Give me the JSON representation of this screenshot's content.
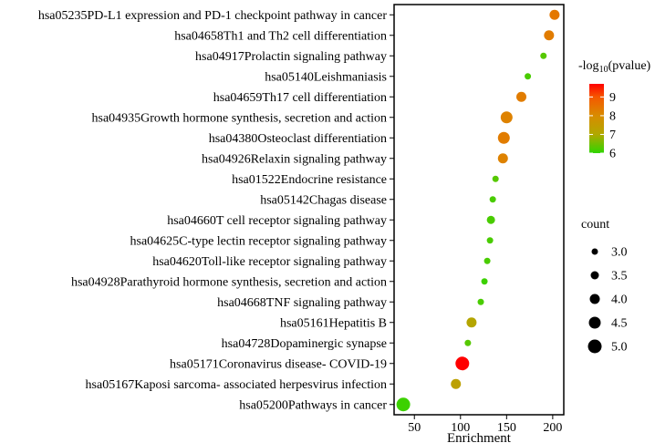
{
  "figure": {
    "background": "#FFFFFF",
    "panel_border_color": "#000000"
  },
  "chart_data": {
    "type": "scatter",
    "title": "",
    "xlabel": "Enrichment",
    "ylabel": "",
    "xlim": [
      28,
      212
    ],
    "x_ticks": [
      50,
      100,
      150,
      200
    ],
    "grid": false,
    "legend_position": "right",
    "color_legend": {
      "title_prefix": "-log",
      "title_sub": "10",
      "title_suffix": "(pvalue)",
      "ticks": [
        9,
        8,
        7,
        6
      ],
      "domain": [
        6,
        9.7
      ],
      "stops": [
        [
          6.0,
          "#2FD500"
        ],
        [
          7.0,
          "#B0A800"
        ],
        [
          8.0,
          "#D88C00"
        ],
        [
          9.0,
          "#F55800"
        ],
        [
          9.7,
          "#FF0000"
        ]
      ]
    },
    "size_legend": {
      "title": "count",
      "tick_labels": [
        "3.0",
        "3.5",
        "4.0",
        "4.5",
        "5.0"
      ],
      "tick_values": [
        3.0,
        3.5,
        4.0,
        4.5,
        5.0
      ],
      "dot_color": "#000000"
    },
    "points": [
      {
        "pathway": "hsa05235PD-L1 expression and PD-1 checkpoint pathway in cancer",
        "enrichment": 202,
        "count": 4.0,
        "neg_log10_pvalue": 8.4
      },
      {
        "pathway": "hsa04658Th1 and Th2 cell differentiation",
        "enrichment": 196,
        "count": 4.0,
        "neg_log10_pvalue": 8.3
      },
      {
        "pathway": "hsa04917Prolactin signaling pathway",
        "enrichment": 190,
        "count": 3.0,
        "neg_log10_pvalue": 6.3
      },
      {
        "pathway": "hsa05140Leishmaniasis",
        "enrichment": 173,
        "count": 3.0,
        "neg_log10_pvalue": 6.2
      },
      {
        "pathway": "hsa04659Th17 cell differentiation",
        "enrichment": 166,
        "count": 4.0,
        "neg_log10_pvalue": 8.3
      },
      {
        "pathway": "hsa04935Growth hormone synthesis, secretion and action",
        "enrichment": 150,
        "count": 4.5,
        "neg_log10_pvalue": 8.2
      },
      {
        "pathway": "hsa04380Osteoclast differentiation",
        "enrichment": 147,
        "count": 4.5,
        "neg_log10_pvalue": 8.3
      },
      {
        "pathway": "hsa04926Relaxin signaling pathway",
        "enrichment": 146,
        "count": 4.0,
        "neg_log10_pvalue": 8.2
      },
      {
        "pathway": "hsa01522Endocrine resistance",
        "enrichment": 138,
        "count": 3.0,
        "neg_log10_pvalue": 6.3
      },
      {
        "pathway": "hsa05142Chagas disease",
        "enrichment": 135,
        "count": 3.0,
        "neg_log10_pvalue": 6.2
      },
      {
        "pathway": "hsa04660T cell receptor signaling pathway",
        "enrichment": 133,
        "count": 3.5,
        "neg_log10_pvalue": 6.2
      },
      {
        "pathway": "hsa04625C-type lectin receptor signaling pathway",
        "enrichment": 132,
        "count": 3.0,
        "neg_log10_pvalue": 6.2
      },
      {
        "pathway": "hsa04620Toll-like receptor signaling pathway",
        "enrichment": 129,
        "count": 3.0,
        "neg_log10_pvalue": 6.2
      },
      {
        "pathway": "hsa04928Parathyroid hormone synthesis, secretion and action",
        "enrichment": 126,
        "count": 3.0,
        "neg_log10_pvalue": 6.1
      },
      {
        "pathway": "hsa04668TNF signaling pathway",
        "enrichment": 122,
        "count": 3.0,
        "neg_log10_pvalue": 6.2
      },
      {
        "pathway": "hsa05161Hepatitis B",
        "enrichment": 112,
        "count": 4.0,
        "neg_log10_pvalue": 7.1
      },
      {
        "pathway": "hsa04728Dopaminergic synapse",
        "enrichment": 108,
        "count": 3.0,
        "neg_log10_pvalue": 6.3
      },
      {
        "pathway": "hsa05171Coronavirus disease- COVID-19",
        "enrichment": 102,
        "count": 5.0,
        "neg_log10_pvalue": 9.7
      },
      {
        "pathway": "hsa05167Kaposi sarcoma- associated herpesvirus infection",
        "enrichment": 95,
        "count": 4.0,
        "neg_log10_pvalue": 7.3
      },
      {
        "pathway": "hsa05200Pathways in cancer",
        "enrichment": 38,
        "count": 5.0,
        "neg_log10_pvalue": 6.1
      }
    ]
  }
}
